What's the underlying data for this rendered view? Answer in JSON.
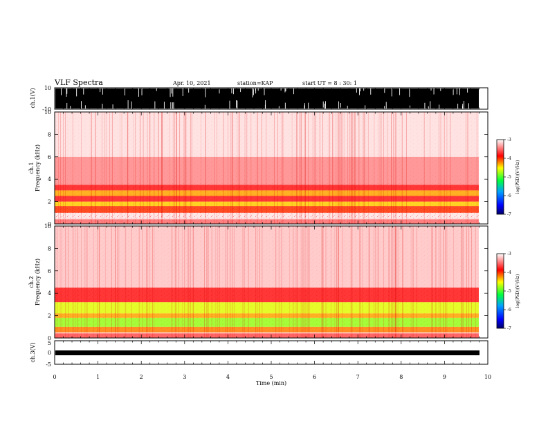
{
  "header": {
    "title": "VLF Spectra",
    "date": "Apr. 10, 2021",
    "station": "station=KAP",
    "start": "start UT =  8 : 30: 1"
  },
  "chart_data": [
    {
      "type": "line",
      "panel": "ch1-waveform",
      "ylabel": "ch.1(V)",
      "ylim": [
        -10,
        10
      ],
      "yticks": [
        "10",
        "-10"
      ],
      "xlim": [
        0,
        10
      ]
    },
    {
      "type": "heatmap",
      "panel": "ch1-spectrogram",
      "ylabel": "ch.1\nFrequency (kHz)",
      "ylim": [
        0,
        10
      ],
      "yticks": [
        "0",
        "2",
        "4",
        "6",
        "8",
        "10"
      ],
      "xlim": [
        0,
        10
      ],
      "bands": [
        {
          "f_low": 0.0,
          "f_high": 0.5,
          "level": -3.5
        },
        {
          "f_low": 1.0,
          "f_high": 1.6,
          "level": -4.0
        },
        {
          "f_low": 1.6,
          "f_high": 2.0,
          "level": -4.4
        },
        {
          "f_low": 2.0,
          "f_high": 2.5,
          "level": -3.8
        },
        {
          "f_low": 2.5,
          "f_high": 3.0,
          "level": -4.3
        },
        {
          "f_low": 3.0,
          "f_high": 3.5,
          "level": -3.8
        },
        {
          "f_low": 3.5,
          "f_high": 6.0,
          "level": -3.4
        },
        {
          "f_low": 6.0,
          "f_high": 10.0,
          "level": -3.1
        }
      ],
      "colorbar": {
        "label": "log(PSD)(V²/Hz)",
        "range": [
          -7,
          -3
        ],
        "ticks": [
          "-3",
          "-4",
          "-5",
          "-6",
          "-7"
        ]
      }
    },
    {
      "type": "heatmap",
      "panel": "ch2-spectrogram",
      "ylabel": "ch.2\nFrequency (kHz)",
      "ylim": [
        0,
        10
      ],
      "yticks": [
        "0",
        "2",
        "4",
        "6",
        "8",
        "10"
      ],
      "xlim": [
        0,
        10
      ],
      "bands": [
        {
          "f_low": 0.0,
          "f_high": 0.5,
          "level": -3.6
        },
        {
          "f_low": 0.5,
          "f_high": 1.0,
          "level": -4.2
        },
        {
          "f_low": 1.0,
          "f_high": 1.8,
          "level": -4.8
        },
        {
          "f_low": 1.8,
          "f_high": 2.2,
          "level": -4.3
        },
        {
          "f_low": 2.2,
          "f_high": 3.2,
          "level": -4.6
        },
        {
          "f_low": 3.2,
          "f_high": 4.5,
          "level": -3.8
        },
        {
          "f_low": 4.5,
          "f_high": 10.0,
          "level": -3.2
        }
      ],
      "colorbar": {
        "label": "log(PSD)(V²/Hz)",
        "range": [
          -7,
          -3
        ],
        "ticks": [
          "-3",
          "-4",
          "-5",
          "-6",
          "-7"
        ]
      }
    },
    {
      "type": "line",
      "panel": "ch3-waveform",
      "ylabel": "ch.3(V)",
      "ylim": [
        -5,
        5
      ],
      "yticks": [
        "5",
        "0",
        "-5"
      ],
      "xlim": [
        0,
        10
      ],
      "xlabel": "Time (min)",
      "xticks": [
        "0",
        "1",
        "2",
        "3",
        "4",
        "5",
        "6",
        "7",
        "8",
        "9",
        "10"
      ]
    }
  ]
}
